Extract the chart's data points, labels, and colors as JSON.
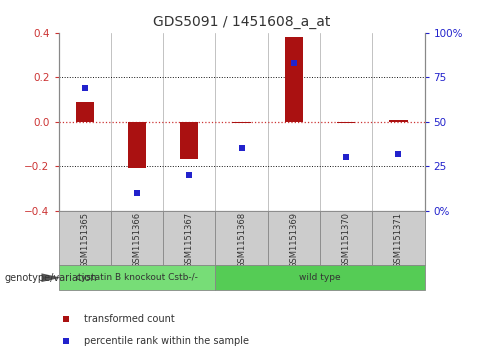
{
  "title": "GDS5091 / 1451608_a_at",
  "samples": [
    "GSM1151365",
    "GSM1151366",
    "GSM1151367",
    "GSM1151368",
    "GSM1151369",
    "GSM1151370",
    "GSM1151371"
  ],
  "bar_values": [
    0.09,
    -0.21,
    -0.17,
    -0.005,
    0.38,
    -0.005,
    0.005
  ],
  "dot_values_pct": [
    69,
    10,
    20,
    35,
    83,
    30,
    32
  ],
  "ylim": [
    -0.4,
    0.4
  ],
  "yticks_left": [
    -0.4,
    -0.2,
    0.0,
    0.2,
    0.4
  ],
  "yticks_right_vals": [
    0,
    25,
    50,
    75,
    100
  ],
  "yticks_right_labels": [
    "0%",
    "25",
    "50",
    "75",
    "100%"
  ],
  "bar_color": "#aa1111",
  "dot_color": "#2222cc",
  "zero_line_color": "#cc3333",
  "grid_color": "#111111",
  "groups": [
    {
      "label": "cystatin B knockout Cstb-/-",
      "start": 0,
      "end": 2,
      "color": "#77dd77"
    },
    {
      "label": "wild type",
      "start": 3,
      "end": 6,
      "color": "#55cc55"
    }
  ],
  "genotype_label": "genotype/variation",
  "legend_bar_label": "transformed count",
  "legend_dot_label": "percentile rank within the sample",
  "bg_color": "#ffffff",
  "sample_box_color": "#cccccc",
  "bar_width": 0.35
}
